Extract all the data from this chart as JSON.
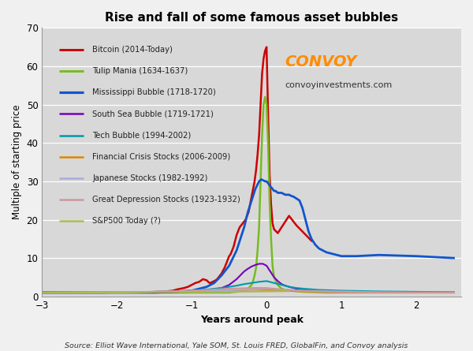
{
  "title": "Rise and fall of some famous asset bubbles",
  "xlabel": "Years around peak",
  "ylabel": "Multiple of starting price",
  "xlim": [
    -3,
    2.6
  ],
  "ylim": [
    0,
    70
  ],
  "yticks": [
    0,
    10,
    20,
    30,
    40,
    50,
    60,
    70
  ],
  "xticks": [
    -3,
    -2,
    -1,
    0,
    1,
    2
  ],
  "plot_bg_color": "#d8d8d8",
  "fig_bg_color": "#f0f0f0",
  "source_text": "Source: Elliot Wave International, Yale SOM, St. Louis FRED, GlobalFin, and Convoy analysis",
  "convoy_text": "CONVOY",
  "convoy_url": "convoyinvestments.com",
  "convoy_color": "#FF8C00",
  "series": [
    {
      "label": "Bitcoin (2014-Today)",
      "color": "#cc0000",
      "linewidth": 1.8,
      "x": [
        -3.0,
        -2.8,
        -2.6,
        -2.4,
        -2.2,
        -2.0,
        -1.8,
        -1.6,
        -1.5,
        -1.4,
        -1.35,
        -1.3,
        -1.25,
        -1.2,
        -1.15,
        -1.1,
        -1.05,
        -1.0,
        -0.95,
        -0.9,
        -0.85,
        -0.8,
        -0.78,
        -0.76,
        -0.74,
        -0.72,
        -0.7,
        -0.68,
        -0.66,
        -0.64,
        -0.62,
        -0.6,
        -0.58,
        -0.56,
        -0.54,
        -0.52,
        -0.5,
        -0.48,
        -0.46,
        -0.44,
        -0.42,
        -0.4,
        -0.38,
        -0.36,
        -0.34,
        -0.32,
        -0.3,
        -0.28,
        -0.26,
        -0.24,
        -0.22,
        -0.2,
        -0.18,
        -0.16,
        -0.14,
        -0.12,
        -0.1,
        -0.08,
        -0.06,
        -0.04,
        -0.02,
        0.0,
        0.02,
        0.04,
        0.06,
        0.08,
        0.1,
        0.15,
        0.2,
        0.25,
        0.3,
        0.4,
        0.5,
        0.6
      ],
      "y": [
        1.0,
        1.0,
        1.0,
        1.0,
        1.0,
        1.05,
        1.08,
        1.1,
        1.15,
        1.2,
        1.3,
        1.4,
        1.5,
        1.8,
        2.0,
        2.2,
        2.5,
        3.0,
        3.5,
        3.8,
        4.5,
        4.2,
        3.8,
        3.5,
        3.6,
        3.8,
        4.0,
        4.2,
        4.5,
        5.0,
        5.5,
        6.0,
        6.8,
        7.5,
        8.5,
        9.5,
        10.5,
        11.0,
        12.0,
        13.0,
        14.5,
        16.0,
        17.0,
        18.0,
        18.5,
        19.0,
        19.5,
        20.0,
        21.0,
        22.0,
        24.0,
        26.0,
        28.0,
        30.0,
        33.0,
        37.0,
        42.0,
        50.0,
        58.0,
        62.0,
        64.0,
        65.0,
        48.0,
        32.0,
        24.0,
        19.0,
        17.5,
        16.5,
        18.0,
        19.5,
        21.0,
        18.5,
        16.5,
        14.5
      ]
    },
    {
      "label": "Tulip Mania (1634-1637)",
      "color": "#77bb22",
      "linewidth": 1.8,
      "x": [
        -3.0,
        -2.5,
        -2.0,
        -1.5,
        -1.0,
        -0.8,
        -0.6,
        -0.5,
        -0.4,
        -0.3,
        -0.25,
        -0.2,
        -0.18,
        -0.16,
        -0.14,
        -0.12,
        -0.1,
        -0.08,
        -0.06,
        -0.04,
        -0.02,
        0.0,
        0.02,
        0.04,
        0.06,
        0.08,
        0.1,
        0.15,
        0.2,
        0.3,
        0.5,
        0.8,
        1.0,
        1.5,
        2.0,
        2.5
      ],
      "y": [
        1.0,
        1.0,
        1.0,
        1.0,
        1.0,
        1.0,
        1.0,
        1.0,
        1.2,
        1.5,
        2.0,
        3.0,
        4.0,
        5.5,
        7.5,
        12.0,
        18.0,
        30.0,
        42.0,
        50.0,
        52.0,
        50.0,
        40.0,
        25.0,
        15.0,
        8.0,
        5.0,
        3.0,
        2.0,
        1.5,
        1.2,
        1.0,
        1.0,
        1.0,
        1.0,
        1.0
      ]
    },
    {
      "label": "Mississippi Bubble (1718-1720)",
      "color": "#1155cc",
      "linewidth": 2.0,
      "x": [
        -3.0,
        -2.5,
        -2.0,
        -1.5,
        -1.2,
        -1.0,
        -0.8,
        -0.7,
        -0.6,
        -0.5,
        -0.4,
        -0.35,
        -0.3,
        -0.25,
        -0.2,
        -0.15,
        -0.1,
        -0.07,
        -0.04,
        -0.02,
        0.0,
        0.02,
        0.04,
        0.06,
        0.08,
        0.1,
        0.12,
        0.15,
        0.18,
        0.2,
        0.22,
        0.25,
        0.28,
        0.3,
        0.33,
        0.36,
        0.4,
        0.44,
        0.48,
        0.52,
        0.56,
        0.6,
        0.65,
        0.7,
        0.8,
        1.0,
        1.2,
        1.5,
        2.0,
        2.5
      ],
      "y": [
        1.0,
        1.0,
        1.0,
        1.0,
        1.2,
        1.5,
        2.5,
        3.5,
        5.5,
        8.0,
        12.0,
        15.0,
        18.0,
        22.0,
        25.0,
        28.0,
        30.0,
        30.5,
        30.2,
        30.0,
        30.0,
        29.5,
        29.0,
        28.5,
        28.0,
        27.5,
        27.5,
        27.0,
        27.0,
        27.0,
        26.8,
        26.5,
        26.5,
        26.5,
        26.2,
        26.0,
        25.5,
        25.0,
        23.0,
        20.0,
        17.0,
        15.0,
        13.5,
        12.5,
        11.5,
        10.5,
        10.5,
        10.8,
        10.5,
        10.0
      ]
    },
    {
      "label": "South Sea Bubble (1719-1721)",
      "color": "#7700bb",
      "linewidth": 1.5,
      "x": [
        -3.0,
        -2.5,
        -2.0,
        -1.5,
        -1.0,
        -0.8,
        -0.6,
        -0.5,
        -0.4,
        -0.35,
        -0.3,
        -0.25,
        -0.2,
        -0.15,
        -0.1,
        -0.05,
        0.0,
        0.05,
        0.1,
        0.15,
        0.2,
        0.25,
        0.3,
        0.4,
        0.5,
        0.7,
        1.0,
        1.5,
        2.0,
        2.5
      ],
      "y": [
        1.0,
        1.0,
        1.0,
        1.0,
        1.2,
        1.5,
        2.2,
        3.0,
        4.5,
        5.5,
        6.5,
        7.2,
        7.8,
        8.2,
        8.5,
        8.5,
        8.0,
        6.5,
        5.0,
        4.0,
        3.2,
        2.8,
        2.5,
        2.0,
        1.8,
        1.5,
        1.2,
        1.0,
        1.0,
        1.0
      ]
    },
    {
      "label": "Tech Bubble (1994-2002)",
      "color": "#0099aa",
      "linewidth": 1.5,
      "x": [
        -3.0,
        -2.5,
        -2.0,
        -1.5,
        -1.0,
        -0.8,
        -0.6,
        -0.4,
        -0.3,
        -0.2,
        -0.1,
        0.0,
        0.1,
        0.2,
        0.3,
        0.4,
        0.5,
        0.7,
        1.0,
        1.5,
        2.0,
        2.5
      ],
      "y": [
        1.0,
        1.0,
        1.0,
        1.2,
        1.5,
        1.8,
        2.2,
        2.8,
        3.2,
        3.5,
        3.8,
        4.0,
        3.5,
        3.0,
        2.5,
        2.2,
        2.0,
        1.7,
        1.5,
        1.3,
        1.2,
        1.1
      ]
    },
    {
      "label": "Financial Crisis Stocks (2006-2009)",
      "color": "#dd8800",
      "linewidth": 1.5,
      "x": [
        -3.0,
        -2.5,
        -2.0,
        -1.5,
        -1.0,
        -0.5,
        -0.2,
        0.0,
        0.2,
        0.5,
        0.8,
        1.0,
        1.5,
        2.0,
        2.5
      ],
      "y": [
        1.0,
        1.05,
        1.1,
        1.2,
        1.4,
        1.6,
        1.7,
        1.7,
        1.5,
        1.3,
        1.1,
        1.0,
        1.0,
        1.0,
        1.0
      ]
    },
    {
      "label": "Japanese Stocks (1982-1992)",
      "color": "#aaaadd",
      "linewidth": 1.5,
      "x": [
        -3.0,
        -2.5,
        -2.0,
        -1.5,
        -1.0,
        -0.5,
        -0.2,
        0.0,
        0.3,
        0.5,
        1.0,
        1.5,
        2.0,
        2.5
      ],
      "y": [
        1.0,
        1.05,
        1.1,
        1.2,
        1.4,
        1.6,
        1.8,
        2.0,
        1.7,
        1.5,
        1.3,
        1.1,
        1.0,
        1.0
      ]
    },
    {
      "label": "Great Depression Stocks (1923-1932)",
      "color": "#cc9999",
      "linewidth": 1.5,
      "x": [
        -3.0,
        -2.5,
        -2.0,
        -1.5,
        -1.0,
        -0.5,
        -0.2,
        0.0,
        0.2,
        0.5,
        1.0,
        1.5,
        2.0,
        2.5
      ],
      "y": [
        1.0,
        1.05,
        1.1,
        1.2,
        1.5,
        2.0,
        2.2,
        2.2,
        1.8,
        1.4,
        1.1,
        1.0,
        1.0,
        1.0
      ]
    },
    {
      "label": "S&P500 Today (?)",
      "color": "#aabb55",
      "linewidth": 1.5,
      "x": [
        -3.0,
        -2.5,
        -2.0,
        -1.5,
        -1.0,
        -0.5,
        -0.2,
        0.0,
        0.3
      ],
      "y": [
        1.0,
        1.0,
        1.05,
        1.1,
        1.15,
        1.2,
        1.25,
        1.3,
        1.35
      ]
    }
  ]
}
